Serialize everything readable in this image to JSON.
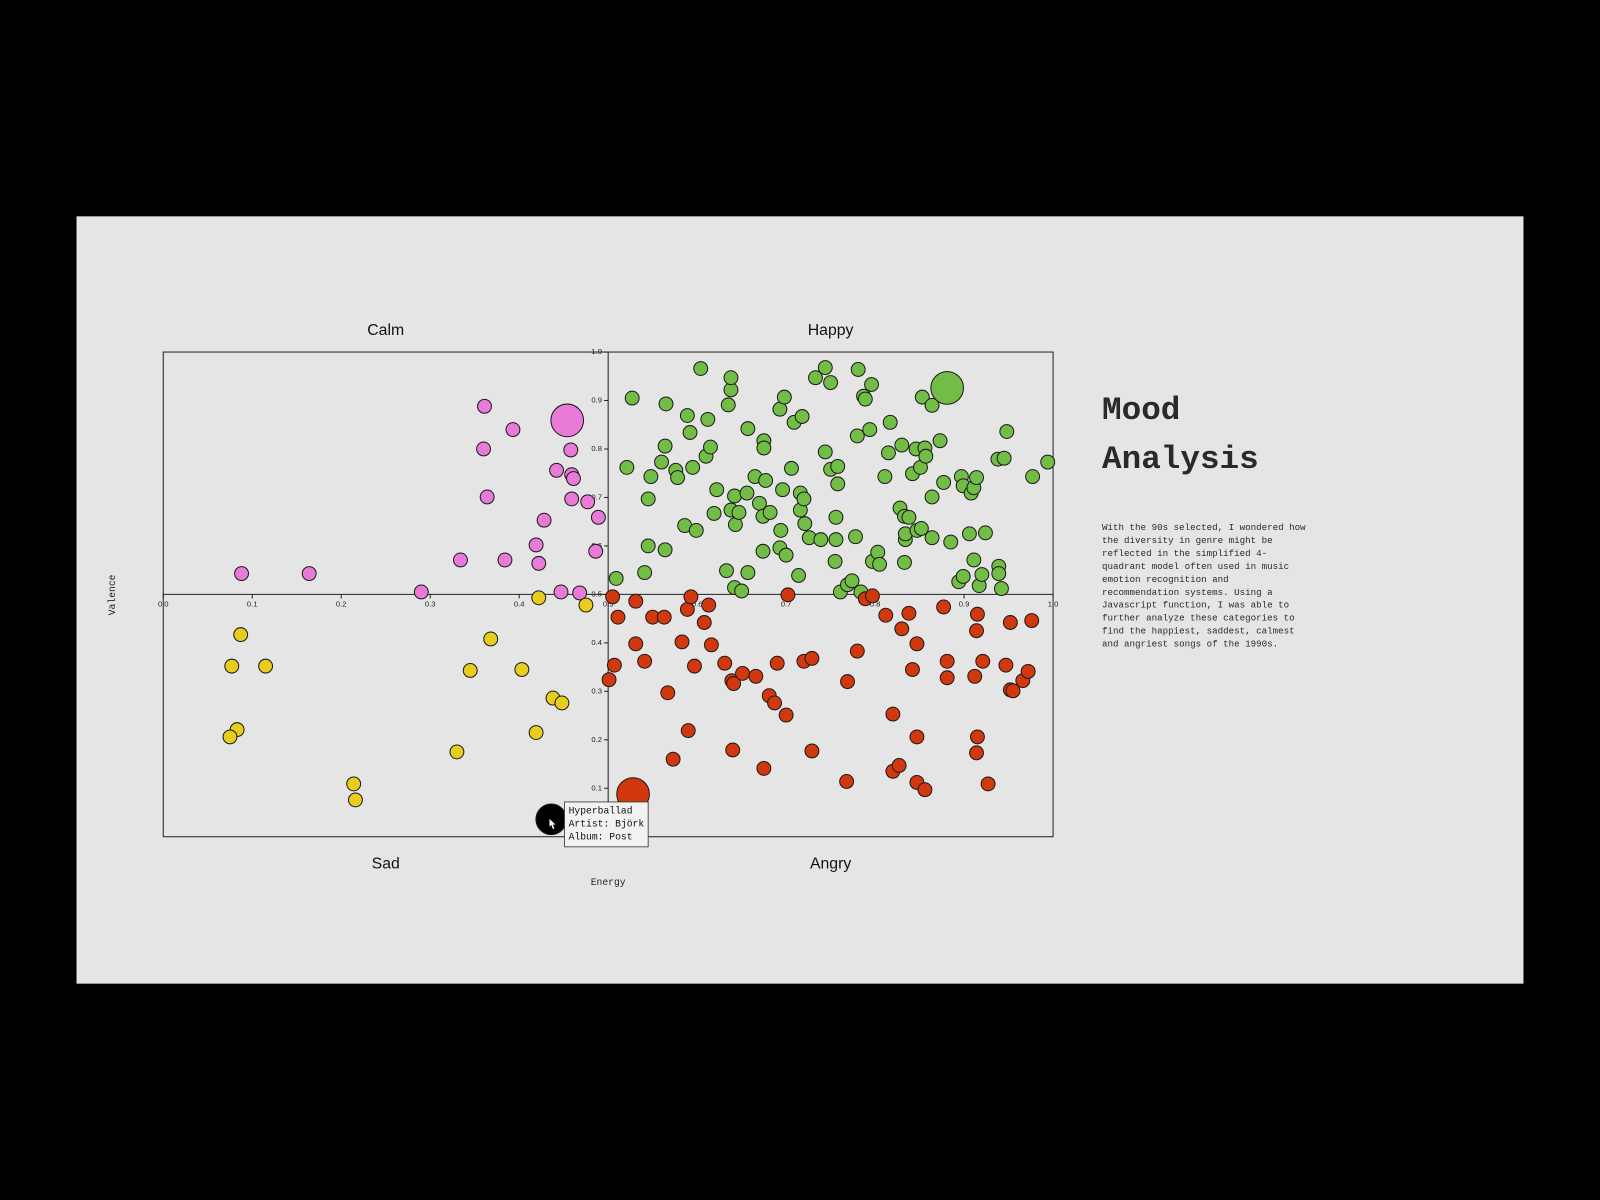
{
  "chart_data": {
    "type": "scatter",
    "title_lines": [
      "Mood",
      "Analysis"
    ],
    "description_lines": [
      "With the 90s selected, I wondered how",
      "the diversity in genre might be",
      "reflected in the simplified 4-",
      "quadrant model often used in music",
      "emotion recognition and",
      "recommendation systems. Using a",
      "Javascript function, I was able to",
      "further analyze these categories to",
      "find the happiest, saddest, calmest",
      "and angriest songs of the 1990s."
    ],
    "x_label": "Energy",
    "y_label": "Valence",
    "xlim": [
      0,
      1
    ],
    "ylim": [
      0,
      1
    ],
    "xticks": [
      {
        "value": 0,
        "label": "0.0"
      },
      0.1,
      0.2,
      0.3,
      0.4,
      0.5,
      0.6,
      0.7,
      0.8,
      0.9,
      {
        "value": 1,
        "label": "1.0"
      }
    ],
    "yticks": [
      0.1,
      0.2,
      0.3,
      0.4,
      0.5,
      0.6,
      0.7,
      0.8,
      0.9,
      {
        "value": 1,
        "label": "1.0"
      }
    ],
    "series": [
      {
        "name": "Happy",
        "color": "#72bd45",
        "highlight": 0,
        "x": [
          0.881,
          0.509,
          0.521,
          0.527,
          0.541,
          0.545,
          0.545,
          0.548,
          0.56,
          0.564,
          0.565,
          0.564,
          0.576,
          0.578,
          0.586,
          0.589,
          0.592,
          0.595,
          0.599,
          0.604,
          0.61,
          0.612,
          0.615,
          0.619,
          0.622,
          0.633,
          0.635,
          0.638,
          0.638,
          0.638,
          0.642,
          0.643,
          0.642,
          0.647,
          0.65,
          0.656,
          0.657,
          0.657,
          0.665,
          0.67,
          0.674,
          0.674,
          0.675,
          0.675,
          0.677,
          0.682,
          0.693,
          0.693,
          0.694,
          0.696,
          0.7,
          0.698,
          0.706,
          0.709,
          0.714,
          0.716,
          0.718,
          0.716,
          0.72,
          0.721,
          0.726,
          0.733,
          0.739,
          0.744,
          0.744,
          0.75,
          0.75,
          0.755,
          0.756,
          0.756,
          0.758,
          0.758,
          0.761,
          0.769,
          0.774,
          0.778,
          0.78,
          0.781,
          0.784,
          0.787,
          0.789,
          0.794,
          0.796,
          0.797,
          0.803,
          0.805,
          0.811,
          0.815,
          0.817,
          0.828,
          0.83,
          0.833,
          0.833,
          0.834,
          0.834,
          0.838,
          0.842,
          0.846,
          0.847,
          0.851,
          0.852,
          0.853,
          0.856,
          0.857,
          0.864,
          0.864,
          0.864,
          0.873,
          0.877,
          0.878,
          0.885,
          0.894,
          0.897,
          0.899,
          0.899,
          0.906,
          0.908,
          0.911,
          0.911,
          0.914,
          0.917,
          0.92,
          0.924,
          0.938,
          0.939,
          0.939,
          0.945,
          0.942,
          0.948,
          0.977,
          0.994
        ],
        "values": [
          0.926,
          0.533,
          0.762,
          0.905,
          0.545,
          0.6,
          0.697,
          0.743,
          0.773,
          0.592,
          0.893,
          0.806,
          0.756,
          0.741,
          0.642,
          0.869,
          0.834,
          0.762,
          0.632,
          0.966,
          0.785,
          0.861,
          0.804,
          0.667,
          0.716,
          0.549,
          0.891,
          0.922,
          0.947,
          0.674,
          0.703,
          0.644,
          0.514,
          0.669,
          0.507,
          0.709,
          0.545,
          0.842,
          0.743,
          0.688,
          0.661,
          0.589,
          0.817,
          0.802,
          0.735,
          0.669,
          0.882,
          0.596,
          0.632,
          0.716,
          0.581,
          0.907,
          0.76,
          0.855,
          0.539,
          0.709,
          0.867,
          0.674,
          0.697,
          0.646,
          0.617,
          0.947,
          0.613,
          0.794,
          0.968,
          0.937,
          0.758,
          0.568,
          0.659,
          0.613,
          0.764,
          0.728,
          0.505,
          0.52,
          0.528,
          0.619,
          0.827,
          0.964,
          0.505,
          0.909,
          0.903,
          0.84,
          0.933,
          0.568,
          0.587,
          0.562,
          0.743,
          0.792,
          0.855,
          0.678,
          0.808,
          0.661,
          0.566,
          0.613,
          0.625,
          0.659,
          0.749,
          0.8,
          0.632,
          0.762,
          0.636,
          0.907,
          0.802,
          0.785,
          0.89,
          0.701,
          0.617,
          0.817,
          0.731,
          0.916,
          0.608,
          0.526,
          0.743,
          0.724,
          0.537,
          0.625,
          0.709,
          0.72,
          0.571,
          0.741,
          0.518,
          0.541,
          0.627,
          0.779,
          0.558,
          0.543,
          0.781,
          0.512,
          0.836,
          0.743,
          0.773
        ]
      },
      {
        "name": "Calm",
        "color": "#ea7ad8",
        "highlight": 0,
        "x": [
          0.454,
          0.088,
          0.164,
          0.29,
          0.334,
          0.361,
          0.36,
          0.364,
          0.384,
          0.393,
          0.419,
          0.422,
          0.428,
          0.442,
          0.447,
          0.458,
          0.459,
          0.461,
          0.459,
          0.468,
          0.477,
          0.486,
          0.489
        ],
        "values": [
          0.859,
          0.543,
          0.543,
          0.505,
          0.571,
          0.888,
          0.8,
          0.701,
          0.571,
          0.84,
          0.602,
          0.564,
          0.653,
          0.756,
          0.505,
          0.798,
          0.747,
          0.739,
          0.697,
          0.503,
          0.691,
          0.589,
          0.659
        ]
      },
      {
        "name": "Sad",
        "color": "#e6cd1e",
        "highlight": 0,
        "x": [
          0.436,
          0.087,
          0.077,
          0.115,
          0.083,
          0.075,
          0.214,
          0.216,
          0.33,
          0.345,
          0.368,
          0.403,
          0.419,
          0.422,
          0.438,
          0.448,
          0.475
        ],
        "values": [
          0.036,
          0.417,
          0.352,
          0.352,
          0.221,
          0.206,
          0.109,
          0.076,
          0.175,
          0.343,
          0.408,
          0.345,
          0.215,
          0.493,
          0.286,
          0.276,
          0.478
        ]
      },
      {
        "name": "Angry",
        "color": "#d2380e",
        "highlight": 0,
        "x": [
          0.528,
          0.505,
          0.501,
          0.507,
          0.511,
          0.531,
          0.531,
          0.541,
          0.55,
          0.563,
          0.567,
          0.573,
          0.583,
          0.589,
          0.593,
          0.59,
          0.597,
          0.608,
          0.613,
          0.616,
          0.631,
          0.639,
          0.641,
          0.64,
          0.651,
          0.666,
          0.675,
          0.681,
          0.687,
          0.69,
          0.7,
          0.702,
          0.72,
          0.729,
          0.729,
          0.768,
          0.769,
          0.78,
          0.789,
          0.797,
          0.812,
          0.82,
          0.82,
          0.827,
          0.83,
          0.838,
          0.842,
          0.847,
          0.847,
          0.847,
          0.856,
          0.877,
          0.881,
          0.881,
          0.912,
          0.914,
          0.915,
          0.915,
          0.914,
          0.921,
          0.927,
          0.947,
          0.952,
          0.952,
          0.955,
          0.966,
          0.972,
          0.976
        ],
        "values": [
          0.088,
          0.495,
          0.324,
          0.354,
          0.453,
          0.486,
          0.398,
          0.362,
          0.453,
          0.453,
          0.297,
          0.16,
          0.402,
          0.469,
          0.495,
          0.219,
          0.352,
          0.442,
          0.478,
          0.396,
          0.358,
          0.322,
          0.316,
          0.179,
          0.337,
          0.331,
          0.141,
          0.291,
          0.276,
          0.358,
          0.251,
          0.499,
          0.362,
          0.368,
          0.177,
          0.114,
          0.32,
          0.383,
          0.491,
          0.497,
          0.457,
          0.253,
          0.135,
          0.147,
          0.429,
          0.461,
          0.345,
          0.398,
          0.206,
          0.112,
          0.097,
          0.474,
          0.362,
          0.328,
          0.331,
          0.425,
          0.459,
          0.206,
          0.173,
          0.362,
          0.109,
          0.354,
          0.442,
          0.303,
          0.301,
          0.322,
          0.341,
          0.446
        ]
      }
    ],
    "tooltip": {
      "series": 2,
      "point": 0,
      "color": "#000000",
      "lines": [
        "Hyperballad",
        "Artist: Björk",
        "Album: Post"
      ]
    }
  }
}
